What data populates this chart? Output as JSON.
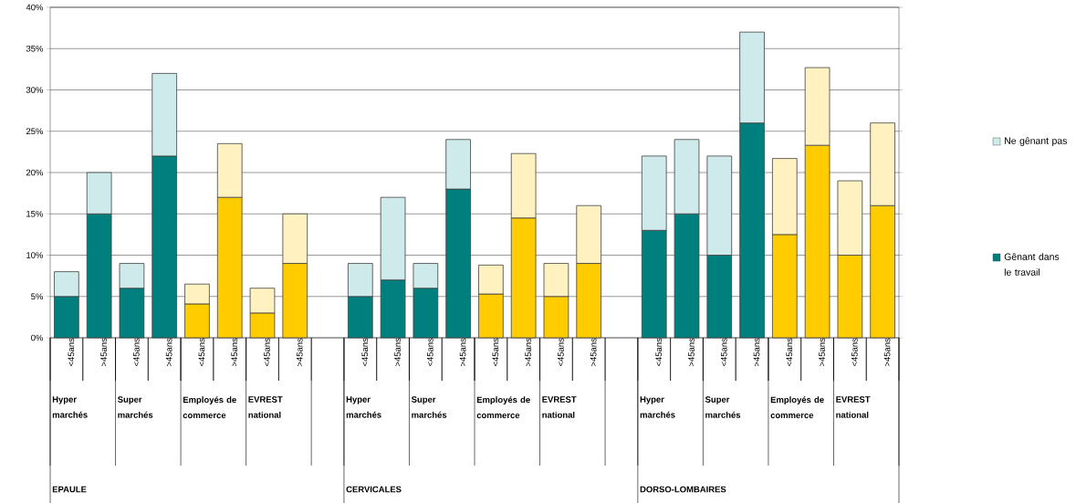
{
  "chart_data": {
    "type": "bar",
    "stacked": true,
    "categories": [
      "<45ans",
      ">45ans",
      "<45ans",
      ">45ans",
      "<45ans",
      ">45ans",
      "<45ans",
      ">45ans",
      null,
      "<45ans",
      ">45ans",
      "<45ans",
      ">45ans",
      "<45ans",
      ">45ans",
      "<45ans",
      ">45ans",
      null,
      "<45ans",
      ">45ans",
      "<45ans",
      ">45ans",
      "<45ans",
      ">45ans",
      "<45ans",
      ">45ans"
    ],
    "series": [
      {
        "name": "Gênant dans le travail",
        "color": "#007f7f",
        "colors": [
          "#007f7f",
          "#007f7f",
          "#007f7f",
          "#007f7f",
          "#ffcc00",
          "#ffcc00",
          "#ffcc00",
          "#ffcc00",
          null,
          "#007f7f",
          "#007f7f",
          "#007f7f",
          "#007f7f",
          "#ffcc00",
          "#ffcc00",
          "#ffcc00",
          "#ffcc00",
          null,
          "#007f7f",
          "#007f7f",
          "#007f7f",
          "#007f7f",
          "#ffcc00",
          "#ffcc00",
          "#ffcc00",
          "#ffcc00"
        ],
        "values": [
          5,
          15,
          6,
          22,
          4.1,
          17,
          3,
          9,
          null,
          5,
          7,
          6,
          18,
          5.3,
          14.5,
          5,
          9,
          null,
          13,
          15,
          10,
          26,
          12.5,
          23.3,
          10,
          16
        ]
      },
      {
        "name": "Ne gênant pas",
        "color": "#cfeaea",
        "colors": [
          "#cfeaea",
          "#cfeaea",
          "#cfeaea",
          "#cfeaea",
          "#fff2c0",
          "#fff2c0",
          "#fff2c0",
          "#fff2c0",
          null,
          "#cfeaea",
          "#cfeaea",
          "#cfeaea",
          "#cfeaea",
          "#fff2c0",
          "#fff2c0",
          "#fff2c0",
          "#fff2c0",
          null,
          "#cfeaea",
          "#cfeaea",
          "#cfeaea",
          "#cfeaea",
          "#fff2c0",
          "#fff2c0",
          "#fff2c0",
          "#fff2c0"
        ],
        "values": [
          3,
          5,
          3,
          10,
          2.4,
          6.5,
          3,
          6,
          null,
          4,
          10,
          3,
          6,
          3.5,
          7.8,
          4,
          7,
          null,
          9,
          9,
          12,
          11,
          9.2,
          9.4,
          9,
          10
        ]
      }
    ],
    "ylim": [
      0,
      40
    ],
    "yticks": [
      {
        "value": 0,
        "label": "0%"
      },
      {
        "value": 5,
        "label": "5%"
      },
      {
        "value": 10,
        "label": "10%"
      },
      {
        "value": 15,
        "label": "15%"
      },
      {
        "value": 20,
        "label": "20%"
      },
      {
        "value": 25,
        "label": "25%"
      },
      {
        "value": 30,
        "label": "30%"
      },
      {
        "value": 35,
        "label": "35%"
      },
      {
        "value": 40,
        "label": "40%"
      }
    ],
    "grid": "y",
    "legend": "right",
    "annotations": [
      "Hyper marchés",
      "Super marchés",
      "Employés de commerce",
      "EVREST national",
      "EPAULE",
      "Hyper marchés",
      "Super marchés",
      "Employés de commerce",
      "EVREST national",
      "CERVICALES",
      "Hyper marchés",
      "Super marchés",
      "Employés de commerce",
      "EVREST national",
      "DORSO-LOMBAIRES"
    ]
  }
}
